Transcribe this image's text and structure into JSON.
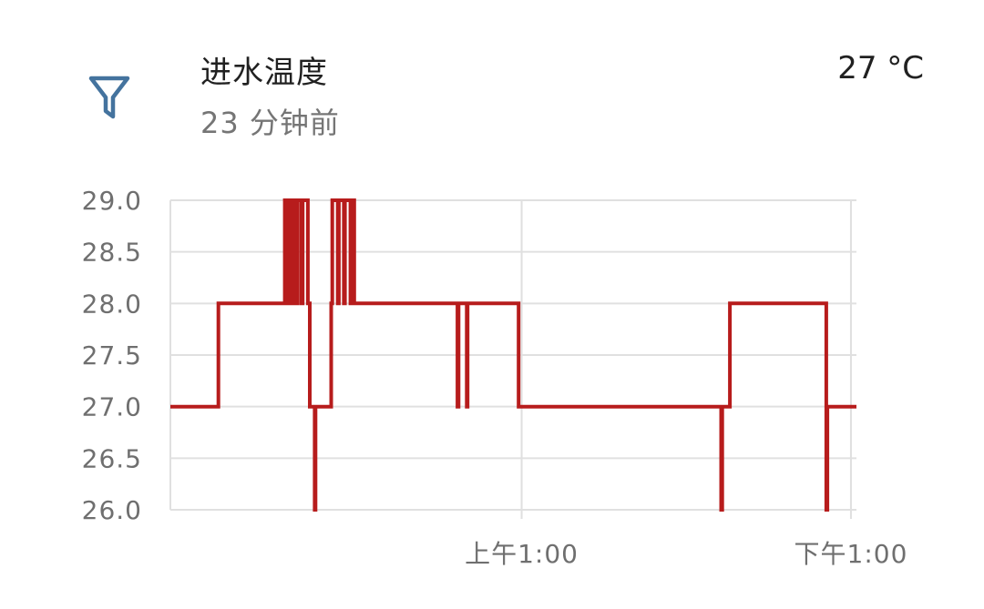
{
  "header": {
    "icon": "filter-icon",
    "title": "进水温度",
    "last_changed": "23 分钟前",
    "state": "27 °C"
  },
  "colors": {
    "series": "#b71c1c",
    "grid": "#e0e0e0",
    "icon": "#44739e"
  },
  "chart_data": {
    "type": "line",
    "step": true,
    "ylim": [
      26.0,
      29.0
    ],
    "y_ticks": [
      "26.0",
      "26.5",
      "27.0",
      "27.5",
      "28.0",
      "28.5",
      "29.0"
    ],
    "x_ticks": [
      {
        "label": "上午1:00",
        "t": 1.0
      },
      {
        "label": "下午1:00",
        "t": 13.0
      }
    ],
    "xlim": [
      -11.8,
      13.2
    ],
    "grid": true,
    "series": [
      {
        "t": [
          -11.8,
          -10.05,
          -7.63,
          -7.5,
          -7.46,
          -7.38,
          -7.34,
          -7.22,
          -7.18,
          -7.04,
          -6.98,
          -6.79,
          -6.72,
          -6.54,
          -6.51,
          -5.94,
          -5.9,
          -5.7,
          -5.66,
          -5.48,
          -5.44,
          -5.24,
          -5.19,
          -5.1,
          -5.06,
          -1.34,
          -1.3,
          -1.0,
          -0.97,
          0.86,
          0.89,
          8.27,
          8.31,
          8.59,
          8.63,
          12.1,
          12.14,
          12.35,
          12.39,
          13.2
        ],
        "value": [
          27.0,
          28.0,
          29.0,
          28.0,
          29.0,
          28.0,
          29.0,
          28.0,
          29.0,
          28.0,
          29.0,
          28.0,
          27.0,
          26.0,
          27.0,
          28.0,
          29.0,
          28.0,
          29.0,
          28.0,
          29.0,
          28.0,
          29.0,
          28.0,
          28.0,
          27.0,
          28.0,
          27.0,
          28.0,
          28.0,
          27.0,
          26.0,
          27.0,
          28.0,
          28.0,
          26.0,
          27.0,
          27.0,
          27.0,
          27.0
        ]
      }
    ]
  }
}
